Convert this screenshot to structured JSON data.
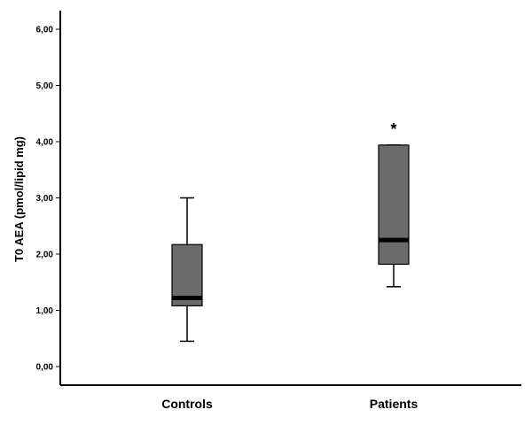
{
  "chart_data": {
    "type": "box",
    "ylabel": "T0 AEA (pmol/lipid mg)",
    "ylim": [
      0,
      6.5
    ],
    "yticks": [
      "0,00",
      "1,00",
      "2,00",
      "3,00",
      "4,00",
      "5,00",
      "6,00"
    ],
    "ytick_values": [
      0,
      1,
      2,
      3,
      4,
      5,
      6
    ],
    "categories": [
      "Controls",
      "Patients"
    ],
    "boxes": [
      {
        "label": "Controls",
        "whisker_low": 0.45,
        "q1": 1.08,
        "median": 1.22,
        "q3": 2.17,
        "whisker_high": 3.0,
        "annotation": ""
      },
      {
        "label": "Patients",
        "whisker_low": 1.42,
        "q1": 1.82,
        "median": 2.25,
        "q3": 3.94,
        "whisker_high": 3.94,
        "annotation": "*"
      }
    ],
    "box_color": "#6b6b6b",
    "median_color": "#000000",
    "grid": false
  }
}
